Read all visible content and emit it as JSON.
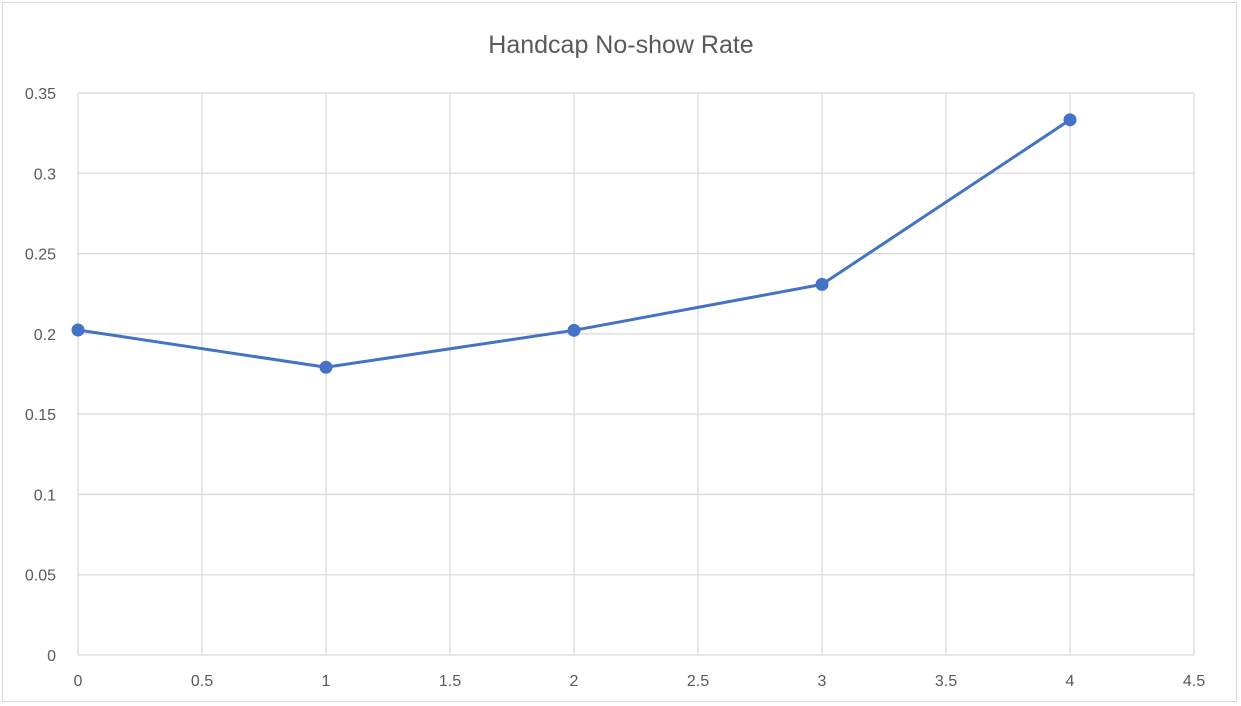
{
  "chart_data": {
    "type": "scatter",
    "title": "Handcap No-show Rate",
    "xlabel": "",
    "ylabel": "",
    "xlim": [
      0,
      4.5
    ],
    "ylim": [
      0,
      0.35
    ],
    "xticks": [
      "0",
      "0.5",
      "1",
      "1.5",
      "2",
      "2.5",
      "3",
      "3.5",
      "4",
      "4.5"
    ],
    "yticks": [
      "0",
      "0.05",
      "0.1",
      "0.15",
      "0.2",
      "0.25",
      "0.3",
      "0.35"
    ],
    "grid": true,
    "legend": "none",
    "series": [
      {
        "x": [
          0,
          1,
          2,
          3,
          4
        ],
        "y": [
          0.2024,
          0.1792,
          0.2022,
          0.2308,
          0.3333
        ],
        "color": "#4472c4",
        "lines": true,
        "markers": true
      }
    ],
    "gridColor": "#d9d9d9",
    "textColor": "#595959"
  }
}
